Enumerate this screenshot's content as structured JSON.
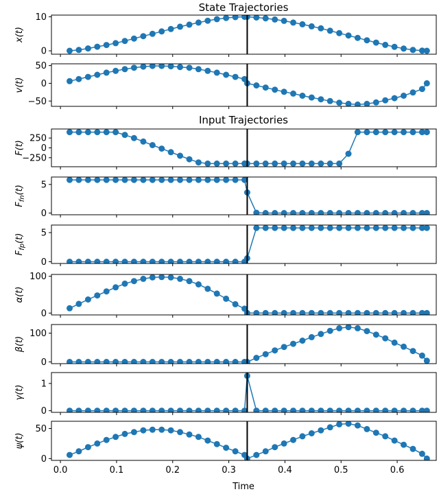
{
  "chart_data": {
    "type": "line",
    "titles": {
      "state": "State Trajectories",
      "input": "Input Trajectories"
    },
    "xlabel": "Time",
    "xlim": [
      -0.016,
      0.6696
    ],
    "xticks": [
      0.0,
      0.1,
      0.2,
      0.3,
      0.4,
      0.5,
      0.6
    ],
    "switch_time": 0.3328,
    "x": [
      0.0164,
      0.0328,
      0.0492,
      0.0656,
      0.082,
      0.0984,
      0.1148,
      0.1312,
      0.1476,
      0.164,
      0.1804,
      0.1968,
      0.2132,
      0.2296,
      0.246,
      0.2624,
      0.2788,
      0.2952,
      0.3116,
      0.328,
      0.3328,
      0.3492,
      0.3656,
      0.382,
      0.3984,
      0.4148,
      0.4312,
      0.4476,
      0.464,
      0.4804,
      0.4968,
      0.5132,
      0.5296,
      0.546,
      0.5624,
      0.5788,
      0.5952,
      0.6116,
      0.628,
      0.6444,
      0.6528
    ],
    "panels": [
      {
        "ylabel": "x(t)",
        "ylim": [
          -1,
          10.5
        ],
        "yticks": [
          0,
          10
        ],
        "values": [
          0.0,
          0.25,
          0.7,
          1.2,
          1.7,
          2.25,
          2.9,
          3.6,
          4.3,
          5.0,
          5.7,
          6.4,
          7.1,
          7.7,
          8.3,
          8.85,
          9.3,
          9.65,
          9.9,
          10.0,
          10.0,
          9.8,
          9.55,
          9.2,
          8.8,
          8.3,
          7.8,
          7.2,
          6.6,
          5.9,
          5.2,
          4.5,
          3.8,
          3.1,
          2.4,
          1.75,
          1.15,
          0.65,
          0.25,
          0.05,
          0.0
        ]
      },
      {
        "ylabel": "v(t)",
        "ylim": [
          -65,
          55
        ],
        "yticks": [
          -50,
          0,
          50
        ],
        "values": [
          6,
          12,
          18,
          24,
          30,
          35,
          40,
          44,
          47,
          49,
          49,
          48,
          46,
          44,
          40,
          35,
          30,
          24,
          18,
          12,
          0,
          -6,
          -12,
          -18,
          -24,
          -29,
          -35,
          -40,
          -45,
          -50,
          -55,
          -58,
          -60,
          -58,
          -54,
          -48,
          -42,
          -35,
          -26,
          -16,
          0
        ]
      },
      {
        "ylabel": "F(t)",
        "ylim": [
          -480,
          480
        ],
        "yticks": [
          -250,
          0,
          250
        ],
        "values": [
          400,
          400,
          400,
          400,
          400,
          400,
          330,
          250,
          160,
          70,
          -20,
          -110,
          -200,
          -290,
          -370,
          -400,
          -400,
          -400,
          -400,
          -400,
          -400,
          -400,
          -400,
          -400,
          -400,
          -400,
          -400,
          -400,
          -400,
          -400,
          -400,
          -150,
          400,
          400,
          400,
          400,
          400,
          400,
          400,
          400,
          400
        ]
      },
      {
        "ylabel": "F_fn(t)",
        "ylim": [
          -0.3,
          6.3
        ],
        "yticks": [
          0,
          5
        ],
        "values": [
          5.8,
          5.8,
          5.8,
          5.8,
          5.8,
          5.8,
          5.8,
          5.8,
          5.8,
          5.8,
          5.8,
          5.8,
          5.8,
          5.8,
          5.8,
          5.8,
          5.8,
          5.8,
          5.8,
          5.8,
          3.6,
          0.05,
          0,
          0,
          0,
          0,
          0,
          0,
          0,
          0,
          0,
          0,
          0,
          0,
          0,
          0,
          0,
          0,
          0,
          0,
          0
        ]
      },
      {
        "ylabel": "F_fp(t)",
        "ylim": [
          -0.3,
          6.3
        ],
        "yticks": [
          0,
          5
        ],
        "values": [
          0,
          0,
          0,
          0,
          0,
          0,
          0,
          0,
          0,
          0,
          0,
          0,
          0,
          0,
          0,
          0,
          0,
          0,
          0,
          0,
          0.6,
          5.8,
          5.8,
          5.8,
          5.8,
          5.8,
          5.8,
          5.8,
          5.8,
          5.8,
          5.8,
          5.8,
          5.8,
          5.8,
          5.8,
          5.8,
          5.8,
          5.8,
          5.8,
          5.8,
          5.8
        ]
      },
      {
        "ylabel": "α(t)",
        "ylim": [
          -5,
          105
        ],
        "yticks": [
          0,
          100
        ],
        "values": [
          13,
          25,
          37,
          48,
          59,
          70,
          80,
          87,
          93,
          97,
          98,
          97,
          93,
          87,
          78,
          66,
          53,
          39,
          24,
          12,
          0,
          0,
          0,
          0,
          0,
          0,
          0,
          0,
          0,
          0,
          0,
          0,
          0,
          0,
          0,
          0,
          0,
          0,
          0,
          0,
          0
        ]
      },
      {
        "ylabel": "β(t)",
        "ylim": [
          -6,
          130
        ],
        "yticks": [
          0,
          100
        ],
        "values": [
          0,
          0,
          0,
          0,
          0,
          0,
          0,
          0,
          0,
          0,
          0,
          0,
          0,
          0,
          0,
          0,
          0,
          0,
          0,
          0,
          0,
          14,
          27,
          40,
          52,
          63,
          74,
          86,
          97,
          108,
          117,
          121,
          117,
          107,
          95,
          82,
          67,
          53,
          38,
          22,
          4
        ]
      },
      {
        "ylabel": "γ(t)",
        "ylim": [
          -0.06,
          1.4
        ],
        "yticks": [
          0,
          1
        ],
        "values": [
          0,
          0,
          0,
          0,
          0,
          0,
          0,
          0,
          0,
          0,
          0,
          0,
          0,
          0,
          0,
          0,
          0,
          0,
          0,
          0,
          1.28,
          0,
          0,
          0,
          0,
          0,
          0,
          0,
          0,
          0,
          0,
          0,
          0,
          0,
          0,
          0,
          0,
          0,
          0,
          0,
          0
        ]
      },
      {
        "ylabel": "ψ(t)",
        "ylim": [
          -3,
          62
        ],
        "yticks": [
          0,
          50
        ],
        "values": [
          6,
          12,
          19,
          25,
          31,
          36,
          41,
          44,
          47,
          48,
          48,
          47,
          44,
          40,
          36,
          30,
          24,
          18,
          12,
          6,
          0,
          6,
          12,
          19,
          25,
          31,
          37,
          42,
          47,
          52,
          57,
          58,
          55,
          49,
          43,
          37,
          30,
          23,
          16,
          8,
          0
        ]
      }
    ]
  }
}
